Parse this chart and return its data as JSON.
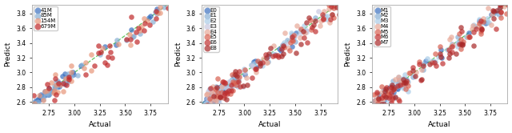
{
  "plot1": {
    "xlabel": "Actual",
    "ylabel": "Predict",
    "xlim": [
      2.58,
      3.92
    ],
    "ylim": [
      2.58,
      3.92
    ],
    "xticks": [
      2.75,
      3.0,
      3.25,
      3.5,
      3.75
    ],
    "yticks": [
      2.6,
      2.8,
      3.0,
      3.2,
      3.4,
      3.6,
      3.8
    ],
    "groups": [
      "41M",
      "85M",
      "154M",
      "679M"
    ],
    "colors": [
      "#3a6fbf",
      "#88aed4",
      "#e8967a",
      "#c0282a"
    ]
  },
  "plot2": {
    "xlabel": "Actual",
    "ylabel": "Predict",
    "xlim": [
      2.58,
      3.92
    ],
    "ylim": [
      2.58,
      3.92
    ],
    "xticks": [
      2.75,
      3.0,
      3.25,
      3.5,
      3.75
    ],
    "yticks": [
      2.6,
      2.8,
      3.0,
      3.2,
      3.4,
      3.6,
      3.8
    ],
    "groups": [
      "E0",
      "E1",
      "E2",
      "E3",
      "E4",
      "E5",
      "E6",
      "E8"
    ],
    "colors": [
      "#3a6fbf",
      "#88aed4",
      "#aacce8",
      "#c8c8e0",
      "#e8a898",
      "#d86050",
      "#c03030",
      "#a82828"
    ]
  },
  "plot3": {
    "xlabel": "Actual",
    "ylabel": "Predict",
    "xlim": [
      2.58,
      3.92
    ],
    "ylim": [
      2.58,
      3.92
    ],
    "xticks": [
      2.75,
      3.0,
      3.25,
      3.5,
      3.75
    ],
    "yticks": [
      2.6,
      2.8,
      3.0,
      3.2,
      3.4,
      3.6,
      3.8
    ],
    "groups": [
      "M1",
      "M2",
      "M3",
      "M4",
      "M5",
      "M6",
      "M7"
    ],
    "colors": [
      "#3a6fbf",
      "#88aed4",
      "#aacce8",
      "#e8a898",
      "#d86050",
      "#c03030",
      "#a82828"
    ]
  },
  "diag_color": "#44bb44",
  "marker": "o",
  "markersize": 3,
  "alpha": 0.7
}
